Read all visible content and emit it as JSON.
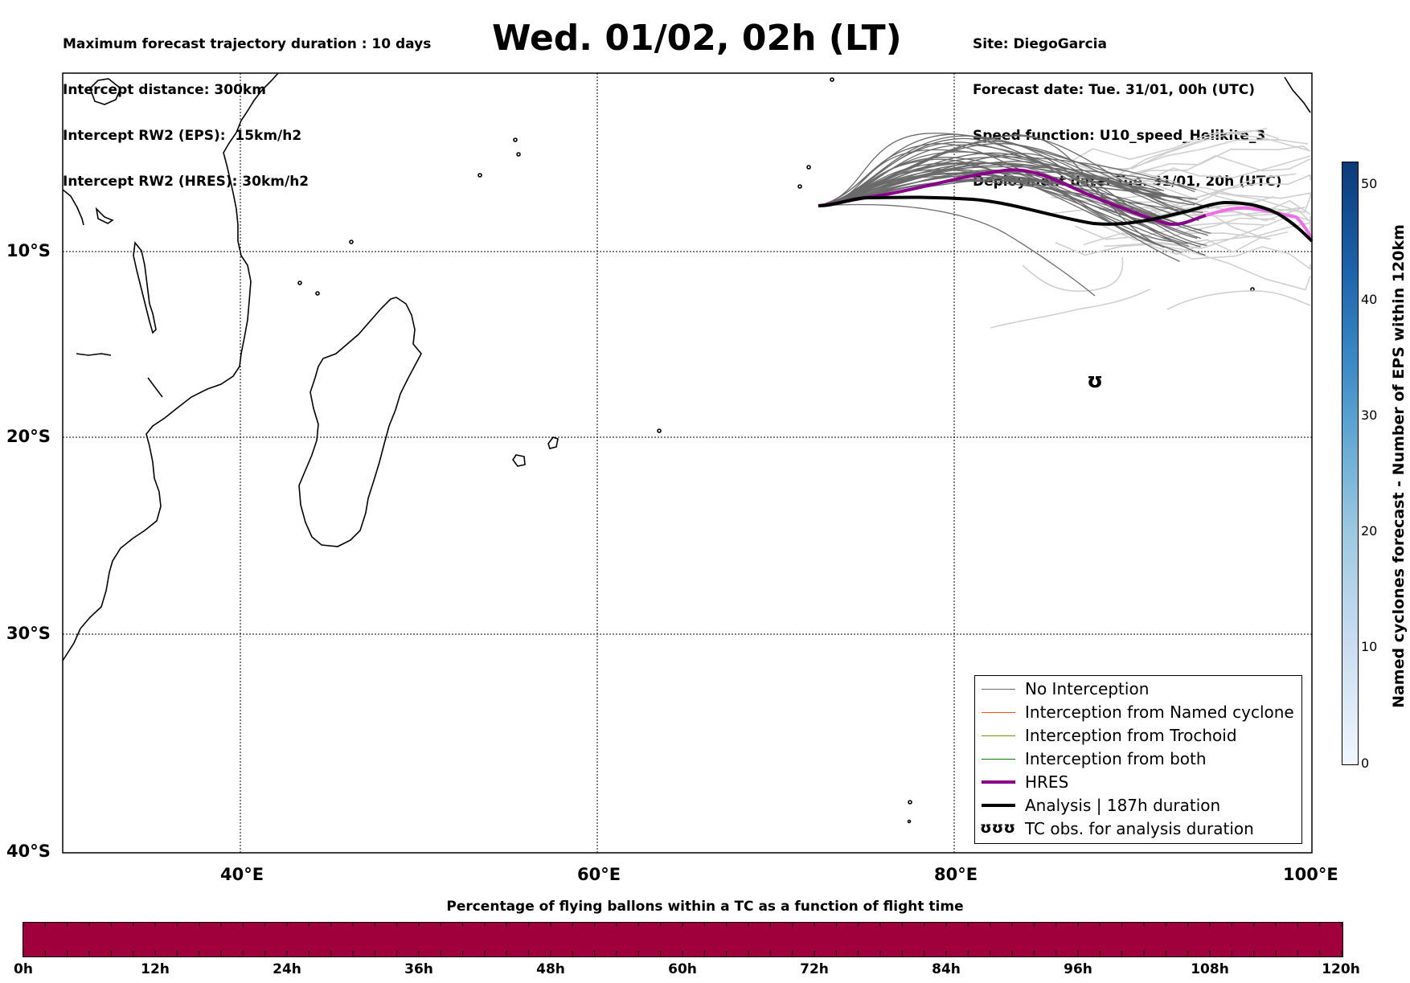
{
  "header": {
    "left_lines": [
      "Maximum forecast trajectory duration : 10 days",
      "Intercept distance: 300km",
      "Intercept RW2 (EPS):  15km/h2",
      "Intercept RW2 (HRES): 30km/h2"
    ],
    "title": "Wed. 01/02, 02h (LT)",
    "right_lines": [
      "Site: DiegoGarcia",
      "Forecast date: Tue. 31/01, 00h (UTC)",
      "Speed function: U10_speed_Helikite_3",
      "Deployment date: Tue. 31/01, 20h (UTC)"
    ]
  },
  "map": {
    "lat_labels": [
      "10°S",
      "20°S",
      "30°S",
      "40°S"
    ],
    "lon_labels": [
      "40°E",
      "60°E",
      "80°E",
      "100°E"
    ],
    "extent": {
      "lon_min": 30,
      "lon_max": 100,
      "lat_min": -40,
      "lat_max": -0.5
    },
    "colors": {
      "no_interception": "#6a6a6a",
      "late_members": "#cfcfcf",
      "hres": "#8b008b",
      "hres_late": "#ee6ee6",
      "analysis": "#000000",
      "named_cyclone": "#ff5000",
      "trochoid": "#8a8a00",
      "both": "#008000"
    },
    "tc_symbol": "cyclone-icon"
  },
  "legend": {
    "items": [
      {
        "label": "No Interception",
        "color": "#6a6a6a",
        "style": "thin"
      },
      {
        "label": "Interception from Named cyclone",
        "color": "#ff5000",
        "style": "thin"
      },
      {
        "label": "Interception from Trochoid",
        "color": "#8a8a00",
        "style": "thin"
      },
      {
        "label": "Interception from both",
        "color": "#008000",
        "style": "thin"
      },
      {
        "label": "HRES",
        "color": "#8b008b",
        "style": "thick"
      },
      {
        "label": "Analysis | 187h duration",
        "color": "#000000",
        "style": "thick"
      },
      {
        "label": "TC obs. for analysis duration",
        "color": "#000000",
        "style": "symbol",
        "symbol": "ʊʊʊ"
      }
    ]
  },
  "colorbar_right": {
    "label": "Named cyclones forecast - Number of EPS within 120km",
    "ticks": [
      "50",
      "40",
      "30",
      "20",
      "10",
      "0"
    ],
    "min": 0,
    "max": 52
  },
  "colorbar_bottom": {
    "title": "Percentage of flying ballons within a TC as a function of flight time",
    "ticks": [
      "0h",
      "12h",
      "24h",
      "36h",
      "48h",
      "60h",
      "72h",
      "84h",
      "96h",
      "108h",
      "120h"
    ],
    "fill_color": "#a0003c"
  }
}
